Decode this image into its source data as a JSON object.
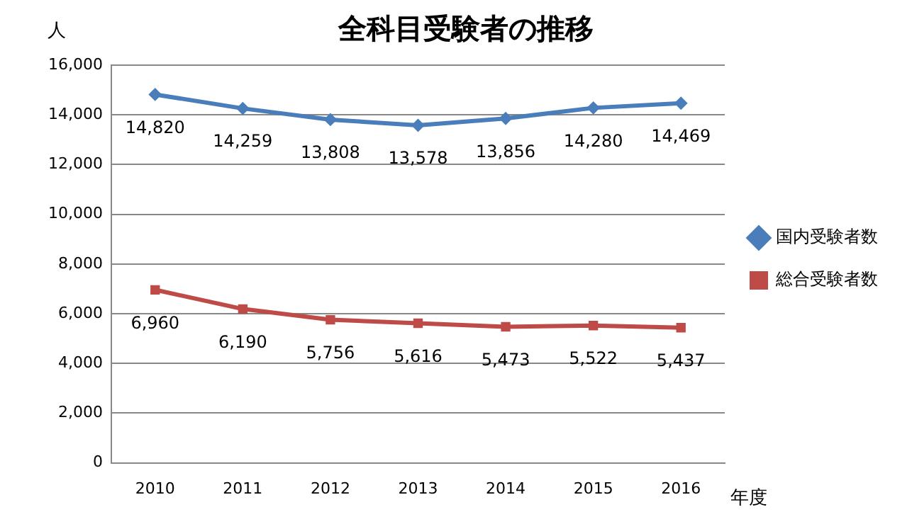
{
  "chart_data": {
    "type": "line",
    "title": "全科目受験者の推移",
    "ylabel": "人",
    "xlabel": "年度",
    "categories": [
      "2010",
      "2011",
      "2012",
      "2013",
      "2014",
      "2015",
      "2016"
    ],
    "series": [
      {
        "name": "国内受験者数",
        "color": "#4a7ebb",
        "marker": "diamond",
        "values": [
          14820,
          14259,
          13808,
          13578,
          13856,
          14280,
          14469
        ],
        "value_labels": [
          "14,820",
          "14,259",
          "13,808",
          "13,578",
          "13,856",
          "14,280",
          "14,469"
        ]
      },
      {
        "name": "総合受験者数",
        "color": "#be4b48",
        "marker": "square",
        "values": [
          6960,
          6190,
          5756,
          5616,
          5473,
          5522,
          5437
        ],
        "value_labels": [
          "6,960",
          "6,190",
          "5,756",
          "5,616",
          "5,473",
          "5,522",
          "5,437"
        ]
      }
    ],
    "ylim": [
      0,
      16000
    ],
    "yticks": [
      0,
      {
        "value": 2000,
        "label": "2,000"
      },
      {
        "value": 4000,
        "label": "4,000"
      },
      {
        "value": 6000,
        "label": "6,000"
      },
      {
        "value": 8000,
        "label": "8,000"
      },
      {
        "value": 10000,
        "label": "10,000"
      },
      {
        "value": 12000,
        "label": "12,000"
      },
      {
        "value": 14000,
        "label": "14,000"
      },
      {
        "value": 16000,
        "label": "16,000"
      }
    ],
    "grid": "y",
    "legend": "right",
    "line_style": "solid"
  }
}
